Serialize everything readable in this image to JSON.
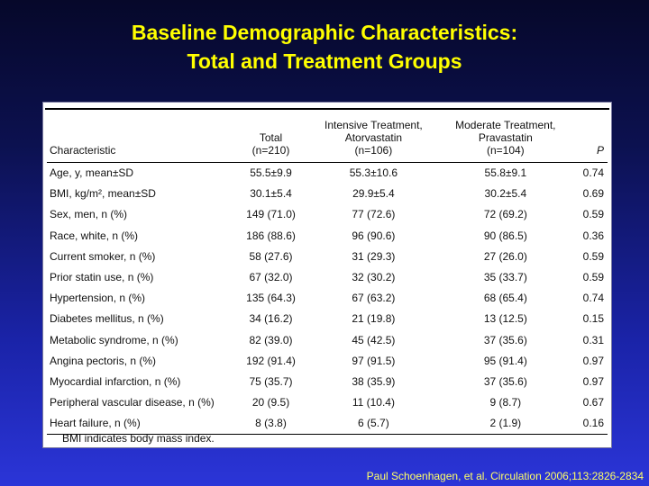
{
  "title": {
    "line1": "Baseline Demographic Characteristics:",
    "line2": "Total and Treatment Groups"
  },
  "table": {
    "headers": {
      "characteristic": "Characteristic",
      "total_l1": "Total",
      "total_l2": "(n=210)",
      "intensive_l0": "Intensive Treatment,",
      "intensive_l1": "Atorvastatin",
      "intensive_l2": "(n=106)",
      "moderate_l0": "Moderate Treatment,",
      "moderate_l1": "Pravastatin",
      "moderate_l2": "(n=104)",
      "p": "P"
    },
    "rows": [
      [
        "Age, y, mean±SD",
        "55.5±9.9",
        "55.3±10.6",
        "55.8±9.1",
        "0.74"
      ],
      [
        "BMI, kg/m², mean±SD",
        "30.1±5.4",
        "29.9±5.4",
        "30.2±5.4",
        "0.69"
      ],
      [
        "Sex, men, n (%)",
        "149 (71.0)",
        "77 (72.6)",
        "72 (69.2)",
        "0.59"
      ],
      [
        "Race, white, n (%)",
        "186 (88.6)",
        "96 (90.6)",
        "90 (86.5)",
        "0.36"
      ],
      [
        "Current smoker, n (%)",
        "58 (27.6)",
        "31 (29.3)",
        "27 (26.0)",
        "0.59"
      ],
      [
        "Prior statin use, n (%)",
        "67 (32.0)",
        "32 (30.2)",
        "35 (33.7)",
        "0.59"
      ],
      [
        "Hypertension, n (%)",
        "135 (64.3)",
        "67 (63.2)",
        "68 (65.4)",
        "0.74"
      ],
      [
        "Diabetes mellitus, n (%)",
        "34 (16.2)",
        "21 (19.8)",
        "13 (12.5)",
        "0.15"
      ],
      [
        "Metabolic syndrome, n (%)",
        "82 (39.0)",
        "45 (42.5)",
        "37 (35.6)",
        "0.31"
      ],
      [
        "Angina pectoris, n (%)",
        "192 (91.4)",
        "97 (91.5)",
        "95 (91.4)",
        "0.97"
      ],
      [
        "Myocardial infarction, n (%)",
        "75 (35.7)",
        "38 (35.9)",
        "37 (35.6)",
        "0.97"
      ],
      [
        "Peripheral vascular disease, n (%)",
        "20 (9.5)",
        "11 (10.4)",
        "9 (8.7)",
        "0.67"
      ],
      [
        "Heart failure, n (%)",
        "8 (3.8)",
        "6 (5.7)",
        "2 (1.9)",
        "0.16"
      ]
    ],
    "footnote": "BMI indicates body mass index."
  },
  "citation": "Paul Schoenhagen, et al. Circulation 2006;113:2826-2834",
  "colors": {
    "title": "#ffff00",
    "background_top": "#06082a",
    "background_bottom": "#2b35d8",
    "panel": "#ffffff"
  }
}
